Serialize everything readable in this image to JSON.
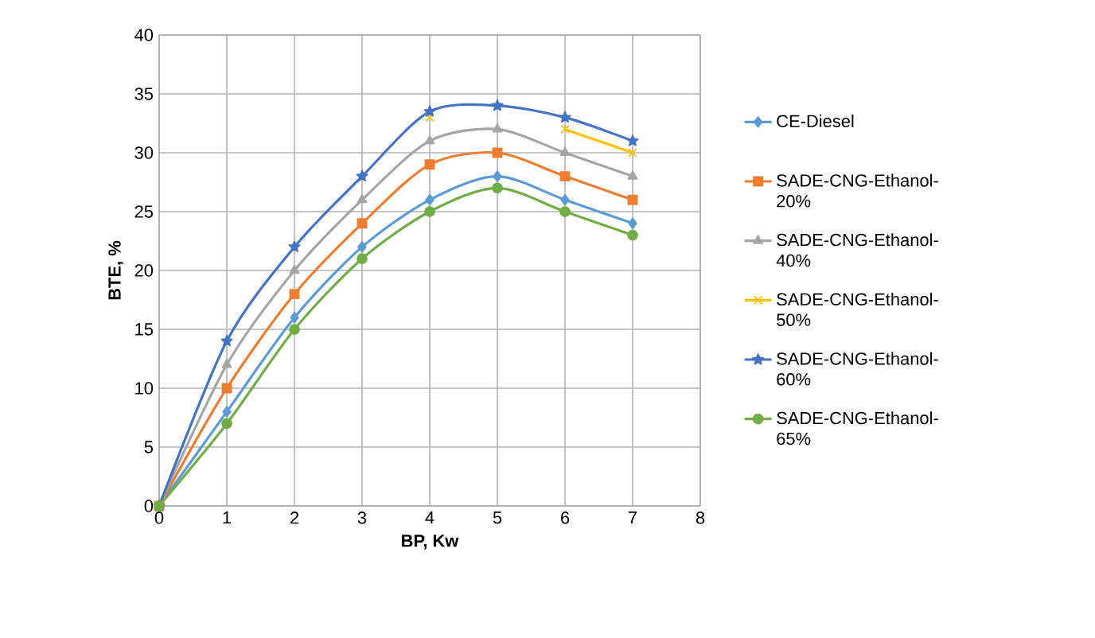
{
  "chart_data": {
    "type": "line",
    "xlabel": "BP, Kw",
    "ylabel": "BTE, %",
    "x": [
      0,
      1,
      2,
      3,
      4,
      5,
      6,
      7
    ],
    "xlim": [
      0,
      8
    ],
    "xticks": [
      0,
      1,
      2,
      3,
      4,
      5,
      6,
      7,
      8
    ],
    "ylim": [
      0,
      40
    ],
    "yticks": [
      0,
      5,
      10,
      15,
      20,
      25,
      30,
      35,
      40
    ],
    "grid": true,
    "legend": "right",
    "series": [
      {
        "name": "CE-Diesel",
        "color": "#5b9bd5",
        "marker": "diamond",
        "values": [
          0,
          8,
          16,
          22,
          26,
          28,
          26,
          24
        ]
      },
      {
        "name": "SADE-CNG-Ethanol-20%",
        "color": "#ed7d31",
        "marker": "square",
        "values": [
          0,
          10,
          18,
          24,
          29,
          30,
          28,
          26
        ]
      },
      {
        "name": "SADE-CNG-Ethanol-40%",
        "color": "#a5a5a5",
        "marker": "triangle",
        "values": [
          0,
          12,
          20,
          26,
          31,
          32,
          30,
          28
        ]
      },
      {
        "name": "SADE-CNG-Ethanol-50%",
        "color": "#ffc000",
        "marker": "cross",
        "values": [
          0,
          null,
          null,
          null,
          33,
          null,
          32,
          30
        ]
      },
      {
        "name": "SADE-CNG-Ethanol-60%",
        "color": "#4472c4",
        "marker": "star",
        "values": [
          0,
          14,
          22,
          28,
          33.5,
          34,
          33,
          31
        ]
      },
      {
        "name": "SADE-CNG-Ethanol-65%",
        "color": "#70ad47",
        "marker": "circle",
        "values": [
          0,
          7,
          15,
          21,
          25,
          27,
          25,
          23
        ]
      }
    ]
  }
}
